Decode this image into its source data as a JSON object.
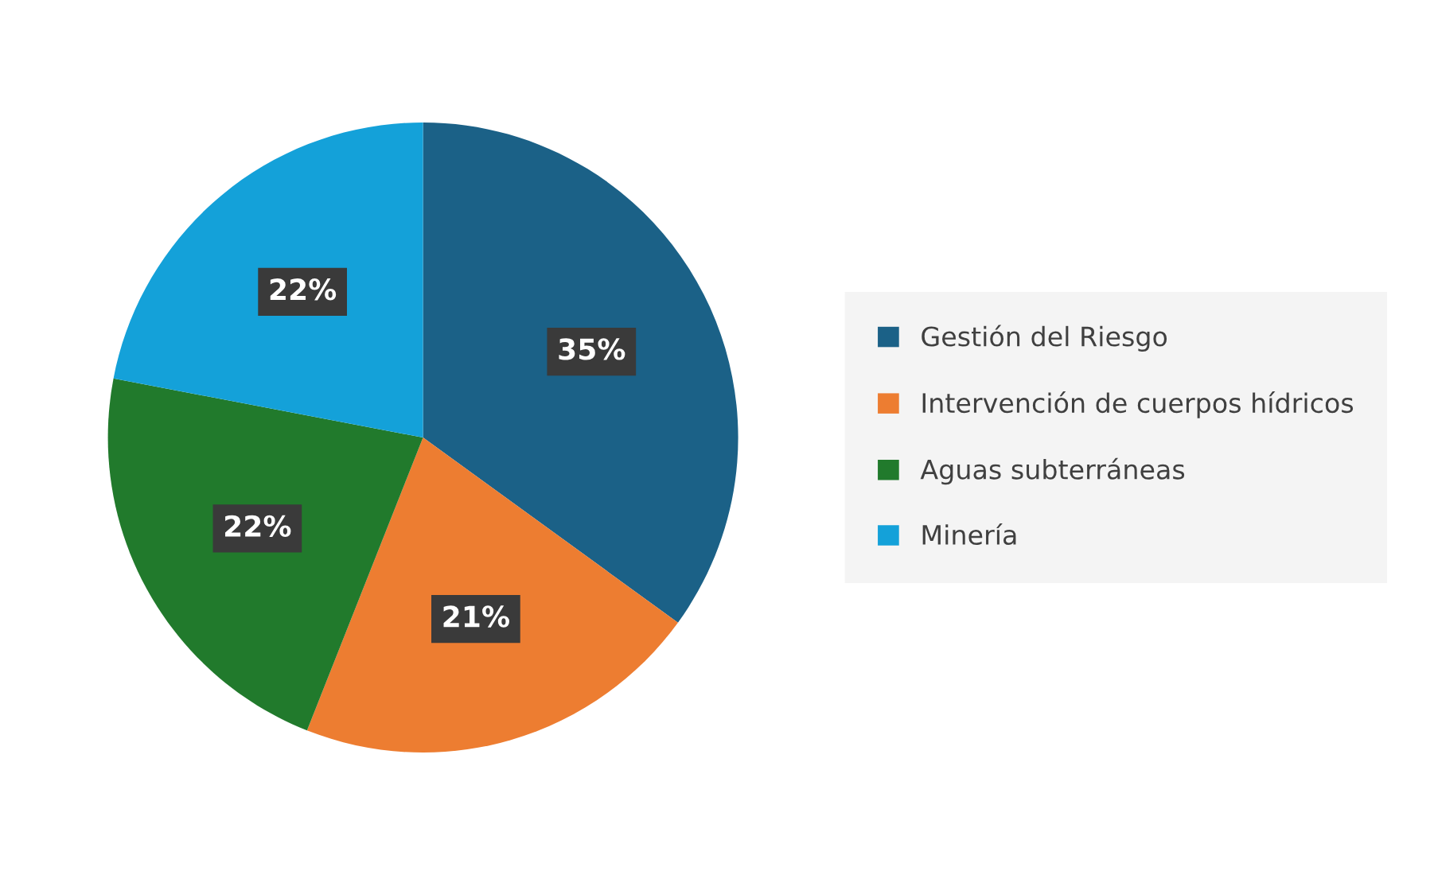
{
  "chart_data": {
    "type": "pie",
    "categories": [
      "Gestión del Riesgo",
      "Intervención de cuerpos hídricos",
      "Aguas subterráneas",
      "Minería"
    ],
    "values": [
      35,
      21,
      22,
      22
    ],
    "value_labels": [
      "35%",
      "21%",
      "22%",
      "22%"
    ],
    "colors": [
      "#1b6187",
      "#ed7d31",
      "#217a2c",
      "#14a1d9"
    ],
    "legend": "right"
  }
}
